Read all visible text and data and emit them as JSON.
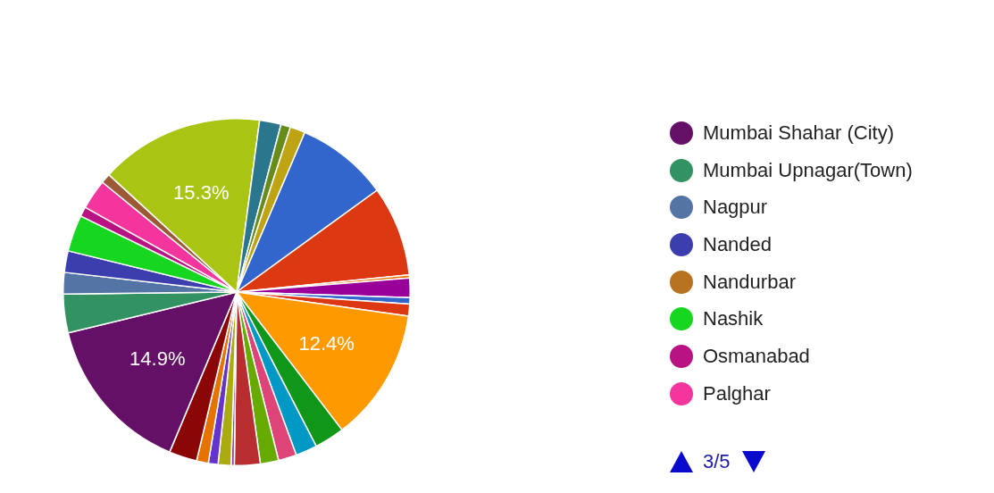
{
  "chart_data": {
    "type": "pie",
    "categories": [
      null,
      null,
      null,
      null,
      null,
      null,
      null,
      null,
      null,
      null,
      null,
      null,
      null,
      null,
      null,
      null,
      null,
      "Mumbai Shahar (City)",
      "Mumbai Upnagar(Town)",
      "Nagpur",
      "Nanded",
      "Nandurbar",
      "Nashik",
      "Osmanabad",
      "Palghar",
      null,
      null,
      null,
      null,
      null
    ],
    "values": [
      8.6,
      8.4,
      0.3,
      1.8,
      0.6,
      1.1,
      12.4,
      2.8,
      2.0,
      1.7,
      1.7,
      2.4,
      0.3,
      1.2,
      0.9,
      1.1,
      2.6,
      14.9,
      3.6,
      2.0,
      2.0,
      0,
      3.4,
      0.9,
      2.8,
      0.9,
      15.3,
      2.0,
      0.9,
      1.4
    ],
    "colors": [
      "#3366cc",
      "#dc3912",
      "#e67300",
      "#990099",
      "#3366cc",
      "#dc3912",
      "#ff9900",
      "#109618",
      "#0099c6",
      "#dd4477",
      "#66aa00",
      "#b82e2e",
      "#994499",
      "#aaaa11",
      "#6633cc",
      "#e67300",
      "#8b0707",
      "#651067",
      "#329262",
      "#5574a6",
      "#3b3eac",
      "#b77322",
      "#16d620",
      "#b91383",
      "#f4359e",
      "#9c5935",
      "#a9c413",
      "#2a778d",
      "#668d1c",
      "#bea413"
    ],
    "value_labels": [
      null,
      null,
      null,
      null,
      null,
      null,
      "12.4%",
      null,
      null,
      null,
      null,
      null,
      null,
      null,
      null,
      null,
      null,
      "14.9%",
      null,
      null,
      null,
      null,
      null,
      null,
      null,
      null,
      "15.3%",
      null,
      null,
      null
    ],
    "legend": "right",
    "annotations": [
      "3/5"
    ]
  }
}
